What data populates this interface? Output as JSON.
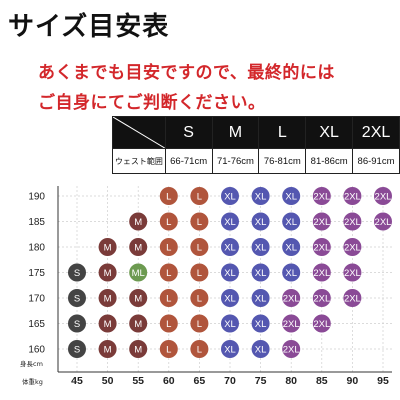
{
  "title": "サイズ目安表",
  "notice_line1": "あくまでも目安ですので、最終的には",
  "notice_line2": "ご自身にてご判断ください。",
  "size_table": {
    "header_sizes": [
      "S",
      "M",
      "L",
      "XL",
      "2XL"
    ],
    "row_label": "ウェスト範囲",
    "waist_ranges": [
      "66-71cm",
      "71-76cm",
      "76-81cm",
      "81-86cm",
      "86-91cm"
    ]
  },
  "colors": {
    "S": "#444444",
    "M": "#7a3b39",
    "M/L": "#6c9a50",
    "L": "#b0553c",
    "XL": "#5457b0",
    "2XL": "#8a4a96",
    "title": "#111111",
    "notice": "#d3272b"
  },
  "chart_data": {
    "type": "scatter",
    "xlabel": "体重kg",
    "ylabel": "身長cm",
    "x_ticks": [
      45,
      50,
      55,
      60,
      65,
      70,
      75,
      80,
      85,
      90,
      95
    ],
    "y_ticks": [
      160,
      165,
      170,
      175,
      180,
      185,
      190
    ],
    "rows": [
      {
        "height": 190,
        "points": [
          {
            "weight": 60,
            "size": "L"
          },
          {
            "weight": 65,
            "size": "L"
          },
          {
            "weight": 70,
            "size": "XL"
          },
          {
            "weight": 75,
            "size": "XL"
          },
          {
            "weight": 80,
            "size": "XL"
          },
          {
            "weight": 85,
            "size": "2XL"
          },
          {
            "weight": 90,
            "size": "2XL"
          },
          {
            "weight": 95,
            "size": "2XL"
          }
        ]
      },
      {
        "height": 185,
        "points": [
          {
            "weight": 55,
            "size": "M"
          },
          {
            "weight": 60,
            "size": "L"
          },
          {
            "weight": 65,
            "size": "L"
          },
          {
            "weight": 70,
            "size": "XL"
          },
          {
            "weight": 75,
            "size": "XL"
          },
          {
            "weight": 80,
            "size": "XL"
          },
          {
            "weight": 85,
            "size": "2XL"
          },
          {
            "weight": 90,
            "size": "2XL"
          },
          {
            "weight": 95,
            "size": "2XL"
          }
        ]
      },
      {
        "height": 180,
        "points": [
          {
            "weight": 50,
            "size": "M"
          },
          {
            "weight": 55,
            "size": "M"
          },
          {
            "weight": 60,
            "size": "L"
          },
          {
            "weight": 65,
            "size": "L"
          },
          {
            "weight": 70,
            "size": "XL"
          },
          {
            "weight": 75,
            "size": "XL"
          },
          {
            "weight": 80,
            "size": "XL"
          },
          {
            "weight": 85,
            "size": "2XL"
          },
          {
            "weight": 90,
            "size": "2XL"
          }
        ]
      },
      {
        "height": 175,
        "points": [
          {
            "weight": 45,
            "size": "S"
          },
          {
            "weight": 50,
            "size": "M"
          },
          {
            "weight": 55,
            "size": "M/L"
          },
          {
            "weight": 60,
            "size": "L"
          },
          {
            "weight": 65,
            "size": "L"
          },
          {
            "weight": 70,
            "size": "XL"
          },
          {
            "weight": 75,
            "size": "XL"
          },
          {
            "weight": 80,
            "size": "XL"
          },
          {
            "weight": 85,
            "size": "2XL"
          },
          {
            "weight": 90,
            "size": "2XL"
          }
        ]
      },
      {
        "height": 170,
        "points": [
          {
            "weight": 45,
            "size": "S"
          },
          {
            "weight": 50,
            "size": "M"
          },
          {
            "weight": 55,
            "size": "M"
          },
          {
            "weight": 60,
            "size": "L"
          },
          {
            "weight": 65,
            "size": "L"
          },
          {
            "weight": 70,
            "size": "XL"
          },
          {
            "weight": 75,
            "size": "XL"
          },
          {
            "weight": 80,
            "size": "2XL"
          },
          {
            "weight": 85,
            "size": "2XL"
          },
          {
            "weight": 90,
            "size": "2XL"
          }
        ]
      },
      {
        "height": 165,
        "points": [
          {
            "weight": 45,
            "size": "S"
          },
          {
            "weight": 50,
            "size": "M"
          },
          {
            "weight": 55,
            "size": "M"
          },
          {
            "weight": 60,
            "size": "L"
          },
          {
            "weight": 65,
            "size": "L"
          },
          {
            "weight": 70,
            "size": "XL"
          },
          {
            "weight": 75,
            "size": "XL"
          },
          {
            "weight": 80,
            "size": "2XL"
          },
          {
            "weight": 85,
            "size": "2XL"
          }
        ]
      },
      {
        "height": 160,
        "points": [
          {
            "weight": 45,
            "size": "S"
          },
          {
            "weight": 50,
            "size": "M"
          },
          {
            "weight": 55,
            "size": "M"
          },
          {
            "weight": 60,
            "size": "L"
          },
          {
            "weight": 65,
            "size": "L"
          },
          {
            "weight": 70,
            "size": "XL"
          },
          {
            "weight": 75,
            "size": "XL"
          },
          {
            "weight": 80,
            "size": "2XL"
          }
        ]
      }
    ]
  }
}
